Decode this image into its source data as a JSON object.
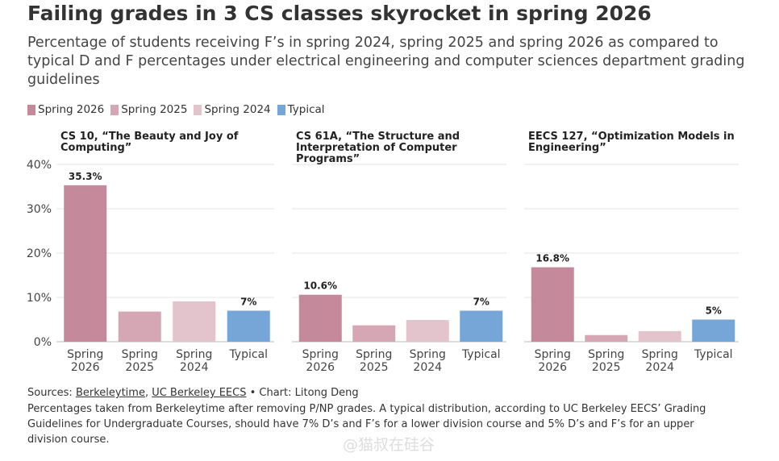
{
  "title": "Failing grades in 3 CS classes skyrocket in spring 2026",
  "subtitle": "Percentage of students receiving F’s in spring 2024, spring 2025 and spring 2026 as compared to typical D and F percentages under electrical engineering and computer sciences department grading guidelines",
  "legend": [
    {
      "name": "Spring 2026",
      "color": "#c48a9c"
    },
    {
      "name": "Spring 2025",
      "color": "#d5a7b5"
    },
    {
      "name": "Spring 2024",
      "color": "#e3c3cc"
    },
    {
      "name": "Typical",
      "color": "#76a6d8"
    }
  ],
  "source": [
    "Sources: ",
    "Berkeleytime",
    ", ",
    "UC Berkeley EECS",
    " • Chart: Litong Deng"
  ],
  "note": "Percentages taken from Berkeleytime after removing P/NP grades. A typical distribution, according to UC Berkeley EECS’ Grading Guidelines for Undergraduate Courses, should have 7% D’s and F’s for a lower division course and 5% D’s and F’s for an upper division course.",
  "watermark": "@猫叔在硅谷",
  "chart_data": [
    {
      "type": "bar",
      "title": "CS 10, “The Beauty and Joy of Computing”",
      "categories": [
        "Spring 2026",
        "Spring 2025",
        "Spring 2024",
        "Typical"
      ],
      "values": [
        35.3,
        6.8,
        9.1,
        7
      ],
      "value_labels": [
        "35.3%",
        null,
        null,
        "7%"
      ],
      "colors": [
        "#c48a9c",
        "#d5a7b5",
        "#e3c3cc",
        "#76a6d8"
      ],
      "ylim": [
        0,
        40
      ],
      "yticks": [
        {
          "value": 0,
          "label": "0%"
        },
        {
          "value": 10,
          "label": "10%"
        },
        {
          "value": 20,
          "label": "20%"
        },
        {
          "value": 30,
          "label": "30%"
        },
        {
          "value": 40,
          "label": "40%"
        }
      ],
      "grid": true
    },
    {
      "type": "bar",
      "title": "CS 61A, “The Structure and Interpretation of Computer Programs”",
      "categories": [
        "Spring 2026",
        "Spring 2025",
        "Spring 2024",
        "Typical"
      ],
      "values": [
        10.6,
        3.7,
        4.9,
        7
      ],
      "value_labels": [
        "10.6%",
        null,
        null,
        "7%"
      ],
      "colors": [
        "#c48a9c",
        "#d5a7b5",
        "#e3c3cc",
        "#76a6d8"
      ],
      "ylim": [
        0,
        40
      ],
      "yticks": [
        0,
        10,
        20,
        30,
        40
      ],
      "grid": true
    },
    {
      "type": "bar",
      "title": "EECS 127, “Optimization Models in Engineering”",
      "categories": [
        "Spring 2026",
        "Spring 2025",
        "Spring 2024",
        "Typical"
      ],
      "values": [
        16.8,
        1.5,
        2.4,
        5
      ],
      "value_labels": [
        "16.8%",
        null,
        null,
        "5%"
      ],
      "colors": [
        "#c48a9c",
        "#d5a7b5",
        "#e3c3cc",
        "#76a6d8"
      ],
      "ylim": [
        0,
        40
      ],
      "yticks": [
        0,
        10,
        20,
        30,
        40
      ],
      "grid": true
    }
  ]
}
